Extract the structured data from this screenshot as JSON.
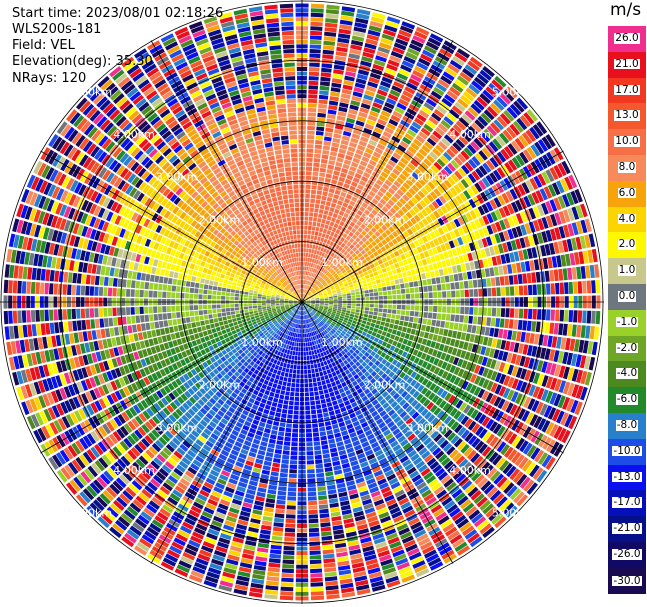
{
  "header": {
    "start_time": "Start time: 2023/08/01 02:18:26",
    "site": "WLS200s-181",
    "field": "Field: VEL",
    "elevation": "Elevation(deg): 35.30",
    "nrays": "NRays: 120"
  },
  "colorbar": {
    "unit": "m/s",
    "levels": [
      {
        "label": "26.0",
        "color": "#f02e8e"
      },
      {
        "label": "21.0",
        "color": "#e8101c"
      },
      {
        "label": "17.0",
        "color": "#f23820"
      },
      {
        "label": "13.0",
        "color": "#f4582c"
      },
      {
        "label": "10.0",
        "color": "#f66f46"
      },
      {
        "label": "8.0",
        "color": "#f78a5a"
      },
      {
        "label": "6.0",
        "color": "#f6a30c"
      },
      {
        "label": "4.0",
        "color": "#fcd400"
      },
      {
        "label": "2.0",
        "color": "#fdf700"
      },
      {
        "label": "1.0",
        "color": "#c8c88c"
      },
      {
        "label": "0.0",
        "color": "#6e767e"
      },
      {
        "label": "-1.0",
        "color": "#9ad02a"
      },
      {
        "label": "-2.0",
        "color": "#6fa627"
      },
      {
        "label": "-4.0",
        "color": "#4c8a1f"
      },
      {
        "label": "-6.0",
        "color": "#238a2c"
      },
      {
        "label": "-8.0",
        "color": "#2880cc"
      },
      {
        "label": "-10.0",
        "color": "#1e4ce6"
      },
      {
        "label": "-13.0",
        "color": "#0a10ef"
      },
      {
        "label": "-17.0",
        "color": "#0610b8"
      },
      {
        "label": "-21.0",
        "color": "#06108a"
      },
      {
        "label": "-26.0",
        "color": "#100a66"
      },
      {
        "label": "-30.0",
        "color": "#1a0a52"
      }
    ]
  },
  "chart_data": {
    "type": "ppi",
    "field": "VEL",
    "units": "m/s",
    "nrays": 120,
    "range_rings_km": [
      1.0,
      2.0,
      3.0,
      4.0,
      5.0
    ],
    "ring_labels": [
      "1.00km",
      "2.00km",
      "3.00km",
      "4.00km",
      "5.00km"
    ],
    "max_range_km": 5.0,
    "spoke_step_deg": 30,
    "description": "Radial velocity PPI. Toward north (upper half): positive velocities increasing from yellow (2 m/s) at the edges to orange/red (8-17 m/s) near north. Toward south (lower half): negative velocities from green (-4 m/s) to blue (-8 to -10 m/s) near south. Gray (~0 m/s) band along east-west. Beyond ~3.2 km: noisy random values across full scale."
  }
}
